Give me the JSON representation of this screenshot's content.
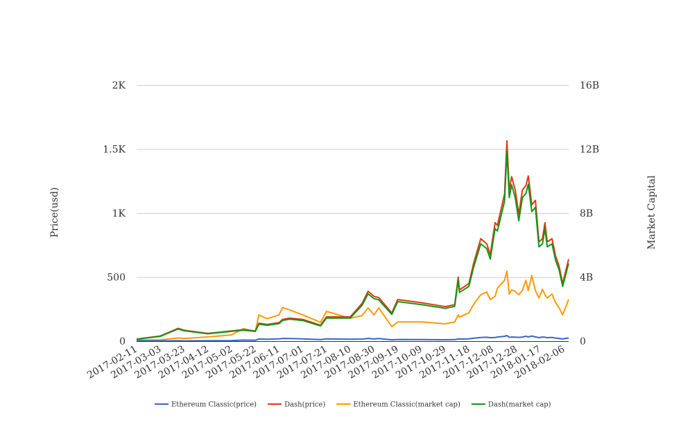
{
  "chart_data": {
    "type": "line",
    "title": "",
    "xlabel": "",
    "ylabel": "Price(usd)",
    "y2label": "Market Capital",
    "ylim": [
      0,
      2000
    ],
    "y2lim": [
      0,
      16000000000
    ],
    "y_ticks": [
      {
        "v": 0,
        "label": "0"
      },
      {
        "v": 500,
        "label": "500"
      },
      {
        "v": 1000,
        "label": "1K"
      },
      {
        "v": 1500,
        "label": "1.5K"
      },
      {
        "v": 2000,
        "label": "2K"
      }
    ],
    "y2_ticks": [
      {
        "v": 0,
        "label": "0"
      },
      {
        "v": 4,
        "label": "4B"
      },
      {
        "v": 8,
        "label": "8B"
      },
      {
        "v": 12,
        "label": "12B"
      },
      {
        "v": 16,
        "label": "16B"
      }
    ],
    "x_range": [
      "2017-02-11",
      "2018-02-10"
    ],
    "x_ticks": [
      "2017-02-11",
      "2017-03-03",
      "2017-03-23",
      "2017-04-12",
      "2017-05-02",
      "2017-05-22",
      "2017-06-11",
      "2017-07-01",
      "2017-07-21",
      "2017-08-10",
      "2017-08-30",
      "2017-09-19",
      "2017-10-09",
      "2017-10-29",
      "2017-11-18",
      "2017-12-08",
      "2017-12-28",
      "2018-01-17",
      "2018-02-06"
    ],
    "grid": true,
    "legend_position": "bottom",
    "x": [
      "2017-02-11",
      "2017-03-03",
      "2017-03-18",
      "2017-03-23",
      "2017-04-12",
      "2017-05-02",
      "2017-05-12",
      "2017-05-22",
      "2017-05-25",
      "2017-06-01",
      "2017-06-11",
      "2017-06-14",
      "2017-06-20",
      "2017-07-01",
      "2017-07-16",
      "2017-07-21",
      "2017-08-10",
      "2017-08-20",
      "2017-08-25",
      "2017-08-30",
      "2017-09-03",
      "2017-09-14",
      "2017-09-19",
      "2017-10-09",
      "2017-10-29",
      "2017-11-06",
      "2017-11-09",
      "2017-11-10",
      "2017-11-18",
      "2017-11-22",
      "2017-11-28",
      "2017-12-03",
      "2017-12-06",
      "2017-12-10",
      "2017-12-12",
      "2017-12-18",
      "2017-12-20",
      "2017-12-22",
      "2017-12-24",
      "2017-12-27",
      "2017-12-30",
      "2018-01-02",
      "2018-01-05",
      "2018-01-07",
      "2018-01-10",
      "2018-01-13",
      "2018-01-16",
      "2018-01-19",
      "2018-01-21",
      "2018-01-23",
      "2018-01-27",
      "2018-01-30",
      "2018-02-02",
      "2018-02-05",
      "2018-02-10"
    ],
    "series": [
      {
        "name": "Ethereum Classic(price)",
        "axis": "left",
        "unit": "usd",
        "color": "#3366cc",
        "values": [
          3,
          2,
          2.5,
          2.3,
          3,
          4.5,
          8,
          7,
          17,
          15,
          18,
          21,
          20,
          18,
          12,
          18,
          15,
          16,
          21,
          17,
          20,
          10,
          13,
          12,
          11,
          12,
          17,
          16,
          18,
          23,
          28,
          30,
          27,
          28,
          32,
          38,
          43,
          30,
          32,
          31,
          29,
          32,
          38,
          33,
          40,
          33,
          27,
          32,
          30,
          27,
          29,
          24,
          21,
          17,
          25
        ]
      },
      {
        "name": "Dash(price)",
        "axis": "left",
        "unit": "usd",
        "color": "#dc3912",
        "values": [
          16,
          40,
          100,
          85,
          60,
          80,
          90,
          80,
          140,
          130,
          145,
          170,
          180,
          170,
          125,
          190,
          190,
          295,
          390,
          350,
          340,
          220,
          325,
          300,
          270,
          285,
          500,
          400,
          450,
          610,
          800,
          760,
          675,
          925,
          905,
          1150,
          1565,
          1180,
          1285,
          1180,
          990,
          1180,
          1215,
          1290,
          1065,
          1100,
          775,
          800,
          925,
          775,
          800,
          665,
          585,
          450,
          640
        ]
      },
      {
        "name": "Ethereum Classic(market cap)",
        "axis": "right",
        "unit": "B usd",
        "color": "#ff9900",
        "values": [
          0.05,
          0.08,
          0.2,
          0.17,
          0.26,
          0.39,
          0.78,
          0.6,
          1.64,
          1.4,
          1.64,
          2.1,
          1.95,
          1.64,
          1.17,
          1.86,
          1.43,
          1.6,
          2.08,
          1.64,
          2.08,
          0.9,
          1.2,
          1.2,
          1.08,
          1.2,
          1.64,
          1.5,
          1.77,
          2.3,
          2.9,
          3.07,
          2.6,
          2.8,
          3.3,
          3.8,
          4.37,
          2.94,
          3.2,
          3.1,
          2.9,
          3.16,
          3.8,
          3.16,
          4.1,
          3.16,
          2.7,
          3.24,
          2.9,
          2.7,
          2.94,
          2.4,
          2.08,
          1.64,
          2.6
        ]
      },
      {
        "name": "Dash(market cap)",
        "axis": "right",
        "unit": "B usd",
        "color": "#109618",
        "values": [
          0.12,
          0.3,
          0.76,
          0.65,
          0.46,
          0.61,
          0.68,
          0.61,
          1.06,
          0.99,
          1.1,
          1.29,
          1.37,
          1.29,
          0.95,
          1.44,
          1.44,
          2.24,
          2.96,
          2.66,
          2.58,
          1.67,
          2.47,
          2.28,
          2.05,
          2.17,
          3.8,
          3.04,
          3.42,
          4.64,
          6.08,
          5.78,
          5.13,
          7.03,
          6.88,
          8.74,
          11.89,
          8.97,
          9.77,
          8.97,
          7.52,
          8.97,
          9.23,
          9.8,
          8.09,
          8.36,
          5.89,
          6.08,
          7.03,
          5.89,
          6.08,
          5.05,
          4.45,
          3.42,
          4.86
        ]
      }
    ]
  }
}
